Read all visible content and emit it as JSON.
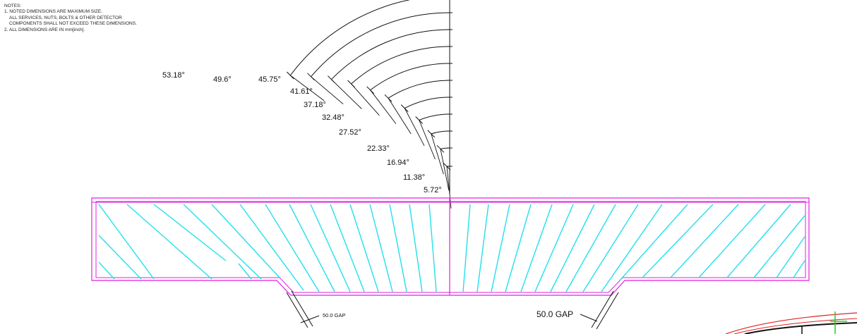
{
  "notes": {
    "title": "NOTES:",
    "line1": "1. NOTED DIMENSIONS ARE MAXIMUM SIZE.",
    "line2": "ALL SERVICES, NUTS, BOLTS & OTHER DETECTOR",
    "line3": "COMPONENTS SHALL NOT EXCEED THESE DIMENSIONS.",
    "line4": "2. ALL DIMENSIONS ARE IN mm[inch]."
  },
  "angles": [
    "53.18°",
    "49.6°",
    "45.75°",
    "41.61°",
    "37.18°",
    "32.48°",
    "27.52°",
    "22.33°",
    "16.94°",
    "11.38°",
    "5.72°"
  ],
  "gap_left": "50.0 GAP",
  "gap_right": "50.0 GAP",
  "colors": {
    "outline": "#e020e0",
    "hatch": "#22e0ee",
    "dimension": "#111111",
    "detail_red": "#e02020",
    "detail_green": "#22cc22"
  }
}
